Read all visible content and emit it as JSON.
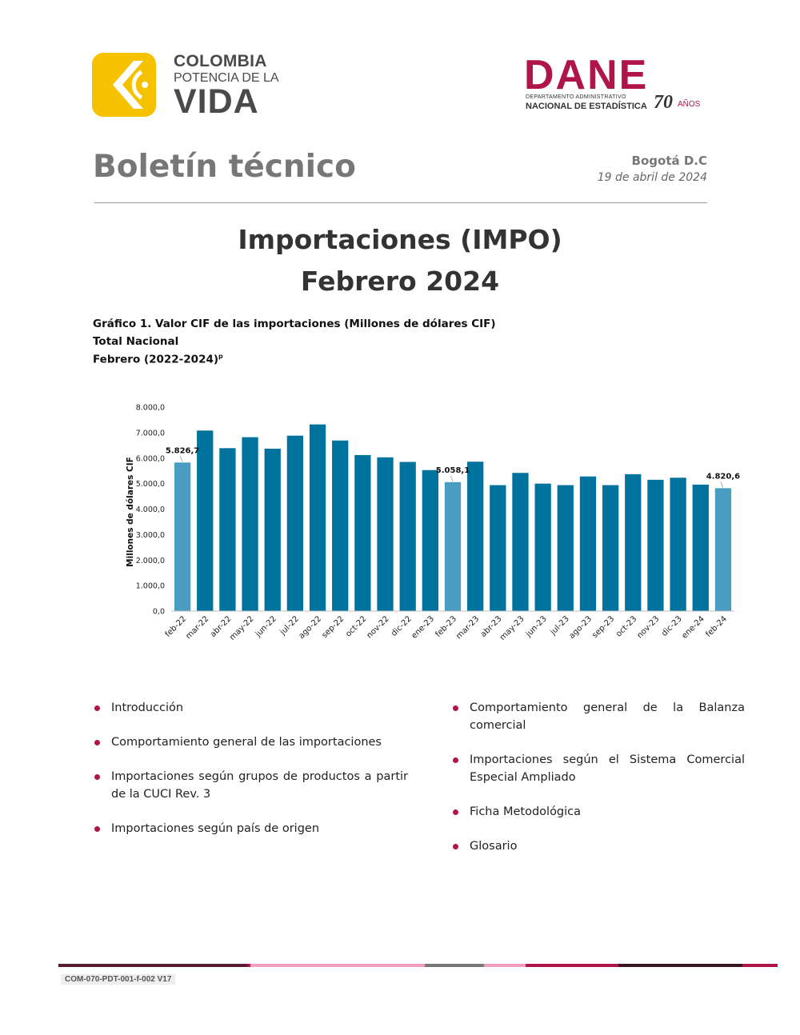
{
  "logos": {
    "colombia": {
      "line1": "COLOMBIA",
      "line2": "POTENCIA DE LA",
      "line3": "VIDA"
    },
    "dane": {
      "word": "DANE",
      "sub1": "DEPARTAMENTO ADMINISTRATIVO",
      "sub2": "NACIONAL DE ESTADÍSTICA",
      "anniv": "70",
      "anos": "AÑOS",
      "color": "#b0154a"
    }
  },
  "header": {
    "title": "Boletín técnico",
    "city": "Bogotá D.C",
    "date": "19 de abril de 2024"
  },
  "main_title": {
    "line1": "Importaciones (IMPO)",
    "line2": "Febrero 2024"
  },
  "caption": {
    "line1": "Gráfico 1. Valor CIF de las importaciones (Millones de dólares CIF)",
    "line2": "Total Nacional",
    "line3": "Febrero (2022-2024)",
    "sup": "p"
  },
  "chart_data": {
    "type": "bar",
    "ylabel": "Millones de dólares CIF",
    "xlabel": "",
    "ylim": [
      0,
      8000
    ],
    "yticks": [
      "0,0",
      "1.000,0",
      "2.000,0",
      "3.000,0",
      "4.000,0",
      "5.000,0",
      "6.000,0",
      "7.000,0",
      "8.000,0"
    ],
    "grid": false,
    "categories": [
      "feb-22",
      "mar-22",
      "abr-22",
      "may-22",
      "jun-22",
      "jul-22",
      "ago-22",
      "sep-22",
      "oct-22",
      "nov-22",
      "dic-22",
      "ene-23",
      "feb-23",
      "mar-23",
      "abr-23",
      "may-23",
      "jun-23",
      "jul-23",
      "ago-23",
      "sep-23",
      "oct-23",
      "nov-23",
      "dic-23",
      "ene-24",
      "feb-24"
    ],
    "values": [
      5826.7,
      7080,
      6390,
      6820,
      6370,
      6880,
      7320,
      6690,
      6120,
      6030,
      5850,
      5530,
      5058.1,
      5860,
      4940,
      5420,
      5000,
      4940,
      5280,
      4940,
      5370,
      5150,
      5230,
      4960,
      4820.6
    ],
    "highlighted": [
      "feb-22",
      "feb-23",
      "feb-24"
    ],
    "data_labels": [
      {
        "category": "feb-22",
        "text": "5.826,7"
      },
      {
        "category": "feb-23",
        "text": "5.058,1"
      },
      {
        "category": "feb-24",
        "text": "4.820,6"
      }
    ],
    "colors": {
      "bar": "#00729e",
      "highlight": "#4a9dc2"
    }
  },
  "contents": {
    "left": [
      "Introducción",
      "Comportamiento general de las importaciones",
      "Importaciones según grupos de productos a partir de la CUCI Rev. 3",
      "Importaciones según país de origen"
    ],
    "right": [
      "Comportamiento general de la Balanza comercial",
      "Importaciones según el Sistema Comercial Especial Ampliado",
      "Ficha Metodológica",
      "Glosario"
    ],
    "bullet_color": "#b0154a"
  },
  "footer": {
    "code": "COM-070-PDT-001-f-002 V17",
    "bar_colors": [
      "#5a1a33",
      "#b0154a",
      "#f29cc4",
      "#f29cc4",
      "#777777",
      "#f29cc4",
      "#b0154a",
      "#3a1424",
      "#b0154a"
    ]
  }
}
